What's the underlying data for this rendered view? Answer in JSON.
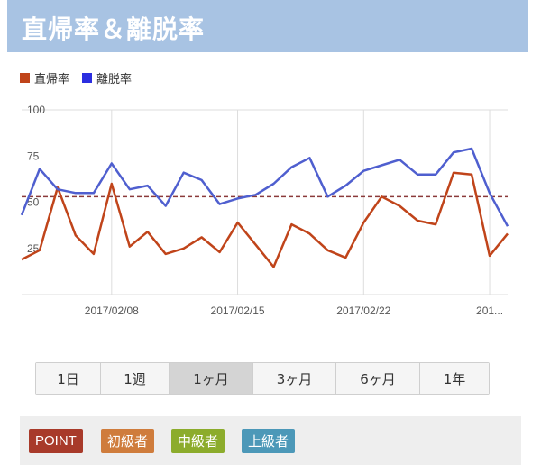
{
  "header": {
    "title": "直帰率＆離脱率"
  },
  "legend": [
    {
      "label": "直帰率",
      "color": "#c0441a"
    },
    {
      "label": "離脱率",
      "color": "#2b2ee0"
    }
  ],
  "chart_data": {
    "type": "line",
    "x_tick_labels": [
      "2017/02/08",
      "2017/02/15",
      "2017/02/22",
      "201..."
    ],
    "y_tick_labels": [
      "100",
      "75",
      "50",
      "25"
    ],
    "ylim": [
      0,
      100
    ],
    "reference_line": 53,
    "reference_color": "#8b3a3a",
    "series": [
      {
        "name": "直帰率",
        "color": "#c0441a",
        "values": [
          19,
          24,
          58,
          32,
          22,
          60,
          26,
          34,
          22,
          25,
          31,
          23,
          39,
          27,
          15,
          38,
          33,
          24,
          20,
          39,
          53,
          48,
          40,
          38,
          66,
          65,
          21,
          33
        ]
      },
      {
        "name": "離脱率",
        "color": "#4f5fcf",
        "values": [
          43,
          68,
          57,
          55,
          55,
          71,
          57,
          59,
          48,
          66,
          62,
          49,
          52,
          54,
          60,
          69,
          74,
          53,
          59,
          67,
          70,
          73,
          65,
          65,
          77,
          79,
          55,
          37
        ]
      }
    ]
  },
  "range_buttons": [
    {
      "label": "1日"
    },
    {
      "label": "1週"
    },
    {
      "label": "1ヶ月"
    },
    {
      "label": "3ヶ月"
    },
    {
      "label": "6ヶ月"
    },
    {
      "label": "1年"
    }
  ],
  "level_tags": [
    {
      "label": "POINT",
      "color": "#a83a2a"
    },
    {
      "label": "初級者",
      "color": "#cf7c3c"
    },
    {
      "label": "中級者",
      "color": "#8cac2c"
    },
    {
      "label": "上級者",
      "color": "#4c98b8"
    }
  ]
}
